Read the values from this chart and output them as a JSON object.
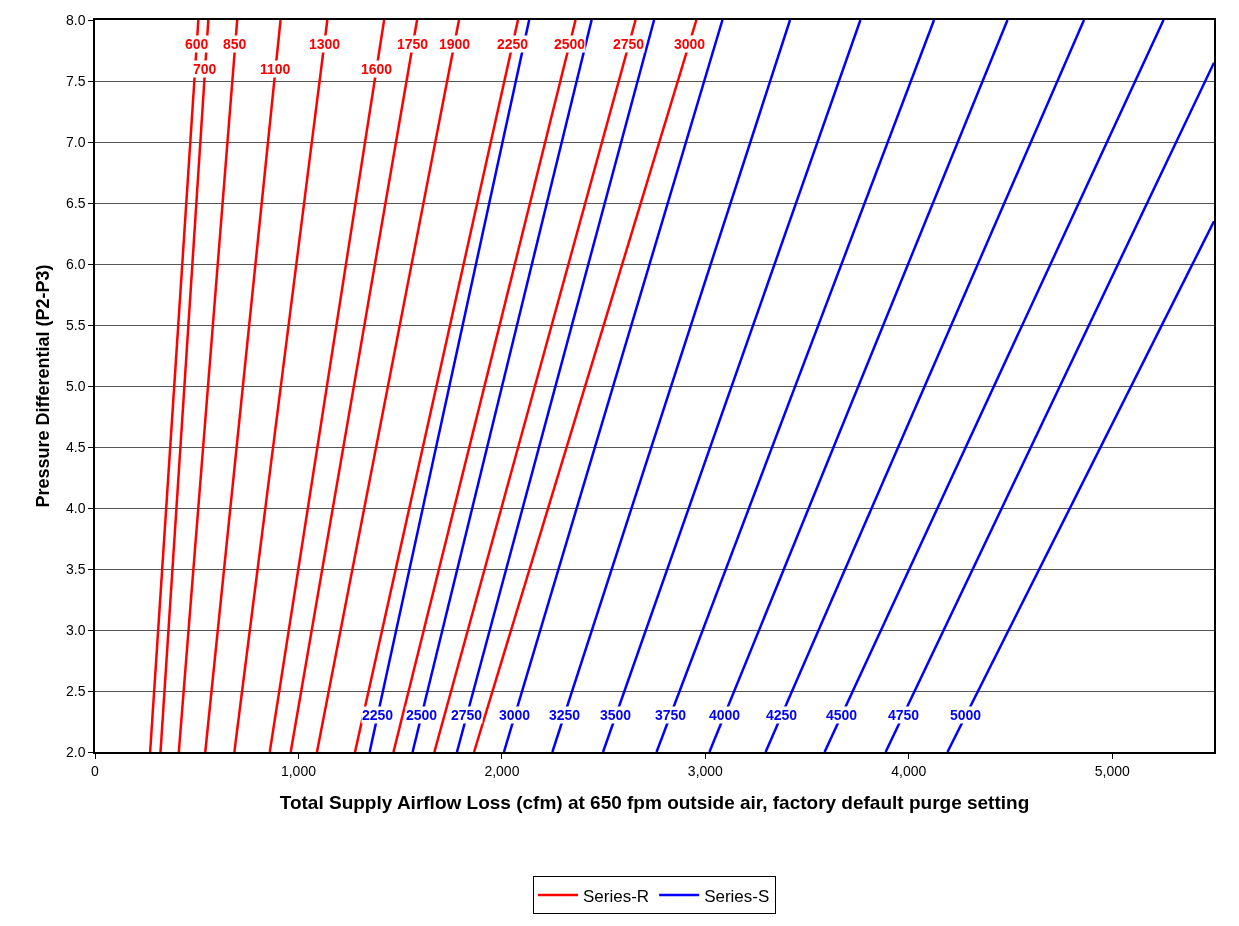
{
  "chart_data": {
    "type": "line",
    "xlabel": "Total Supply Airflow Loss (cfm) at 650 fpm outside air, factory default purge setting",
    "ylabel": "Pressure Differential (P2-P3)",
    "xlim": [
      0,
      5500
    ],
    "ylim": [
      2,
      8
    ],
    "xticks": [
      0,
      {
        "value": 1000,
        "label": "1,000"
      },
      {
        "value": 2000,
        "label": "2,000"
      },
      {
        "value": 3000,
        "label": "3,000"
      },
      {
        "value": 4000,
        "label": "4,000"
      },
      {
        "value": 5000,
        "label": "5,000"
      }
    ],
    "yticks": [
      {
        "value": 2,
        "label": "2.0"
      },
      {
        "value": 2.5,
        "label": "2.5"
      },
      {
        "value": 3,
        "label": "3.0"
      },
      {
        "value": 3.5,
        "label": "3.5"
      },
      {
        "value": 4,
        "label": "4.0"
      },
      {
        "value": 4.5,
        "label": "4.5"
      },
      {
        "value": 5,
        "label": "5.0"
      },
      {
        "value": 5.5,
        "label": "5.5"
      },
      {
        "value": 6,
        "label": "6.0"
      },
      {
        "value": 6.5,
        "label": "6.5"
      },
      {
        "value": 7,
        "label": "7.0"
      },
      {
        "value": 7.5,
        "label": "7.5"
      },
      {
        "value": 8,
        "label": "8.0"
      }
    ],
    "grid": "y",
    "legend": "bottom",
    "marker": "none",
    "line_style": "solid",
    "series": [
      {
        "name": "Series-R",
        "color": "#ff0000",
        "x": [
          271,
          508
        ],
        "values": [
          2,
          8
        ]
      },
      {
        "color": "#ff0000",
        "x": [
          322,
          557
        ],
        "values": [
          2,
          8
        ]
      },
      {
        "color": "#ff0000",
        "x": [
          412,
          699
        ],
        "values": [
          2,
          8
        ]
      },
      {
        "color": "#ff0000",
        "x": [
          542,
          912
        ],
        "values": [
          2,
          8
        ]
      },
      {
        "color": "#ff0000",
        "x": [
          685,
          1142
        ],
        "values": [
          2,
          8
        ]
      },
      {
        "color": "#ff0000",
        "x": [
          859,
          1421
        ],
        "values": [
          2,
          8
        ]
      },
      {
        "color": "#ff0000",
        "x": [
          962,
          1583
        ],
        "values": [
          2,
          8
        ]
      },
      {
        "color": "#ff0000",
        "x": [
          1091,
          1789
        ],
        "values": [
          2,
          8
        ]
      },
      {
        "color": "#ff0000",
        "x": [
          1278,
          2079
        ],
        "values": [
          2,
          8
        ]
      },
      {
        "color": "#ff0000",
        "x": [
          1467,
          2362
        ],
        "values": [
          2,
          8
        ]
      },
      {
        "color": "#ff0000",
        "x": [
          1668,
          2657
        ],
        "values": [
          2,
          8
        ]
      },
      {
        "color": "#ff0000",
        "x": [
          1863,
          2956
        ],
        "values": [
          2,
          8
        ]
      },
      {
        "name": "Series-S",
        "color": "#0000ff",
        "x": [
          1350,
          2134
        ],
        "values": [
          2,
          8
        ]
      },
      {
        "color": "#0000ff",
        "x": [
          1561,
          2441
        ],
        "values": [
          2,
          8
        ]
      },
      {
        "color": "#0000ff",
        "x": [
          1779,
          2748
        ],
        "values": [
          2,
          8
        ]
      },
      {
        "color": "#0000ff",
        "x": [
          2010,
          3084
        ],
        "values": [
          2,
          8
        ]
      },
      {
        "color": "#0000ff",
        "x": [
          2248,
          3416
        ],
        "values": [
          2,
          8
        ]
      },
      {
        "color": "#0000ff",
        "x": [
          2497,
          3762
        ],
        "values": [
          2,
          8
        ]
      },
      {
        "color": "#0000ff",
        "x": [
          2760,
          4124
        ],
        "values": [
          2,
          8
        ]
      },
      {
        "color": "#0000ff",
        "x": [
          3020,
          4485
        ],
        "values": [
          2,
          8
        ]
      },
      {
        "color": "#0000ff",
        "x": [
          3296,
          4861
        ],
        "values": [
          2,
          8
        ]
      },
      {
        "color": "#0000ff",
        "x": [
          3586,
          5252
        ],
        "values": [
          2,
          8
        ]
      },
      {
        "color": "#0000ff",
        "x": [
          3886,
          5500
        ],
        "values": [
          2,
          7.65
        ]
      },
      {
        "color": "#0000ff",
        "x": [
          4190,
          5500
        ],
        "values": [
          2,
          6.35
        ]
      }
    ],
    "annotations": [
      {
        "text": "600",
        "x": 500.1,
        "y": 7.8
      },
      {
        "text": "700",
        "x": 541.3,
        "y": 7.6
      },
      {
        "text": "850",
        "x": 689.4,
        "y": 7.8
      },
      {
        "text": "1100",
        "x": 887.3,
        "y": 7.6
      },
      {
        "text": "1300",
        "x": 1126.8,
        "y": 7.8
      },
      {
        "text": "1600",
        "x": 1383.5,
        "y": 7.6
      },
      {
        "text": "1750",
        "x": 1562.3,
        "y": 7.8
      },
      {
        "text": "1900",
        "x": 1765.7,
        "y": 7.8
      },
      {
        "text": "2250",
        "x": 2052.3,
        "y": 7.8
      },
      {
        "text": "2500",
        "x": 2332.2,
        "y": 7.8
      },
      {
        "text": "2750",
        "x": 2624,
        "y": 7.8
      },
      {
        "text": "3000",
        "x": 2919.6,
        "y": 7.8
      },
      {
        "text": "2250",
        "x": 1389.2,
        "y": 2.3
      },
      {
        "text": "2500",
        "x": 1605,
        "y": 2.3
      },
      {
        "text": "2750",
        "x": 1827.5,
        "y": 2.3
      },
      {
        "text": "3000",
        "x": 2063.7,
        "y": 2.3
      },
      {
        "text": "3250",
        "x": 2306.4,
        "y": 2.3
      },
      {
        "text": "3500",
        "x": 2560.3,
        "y": 2.3
      },
      {
        "text": "3750",
        "x": 2828.2,
        "y": 2.3
      },
      {
        "text": "4000",
        "x": 3093.3,
        "y": 2.3
      },
      {
        "text": "4250",
        "x": 3374.3,
        "y": 2.3
      },
      {
        "text": "4500",
        "x": 3669.3,
        "y": 2.3
      },
      {
        "text": "4750",
        "x": 3971.7,
        "y": 2.3
      },
      {
        "text": "5000",
        "x": 4280.3,
        "y": 2.3
      }
    ]
  }
}
